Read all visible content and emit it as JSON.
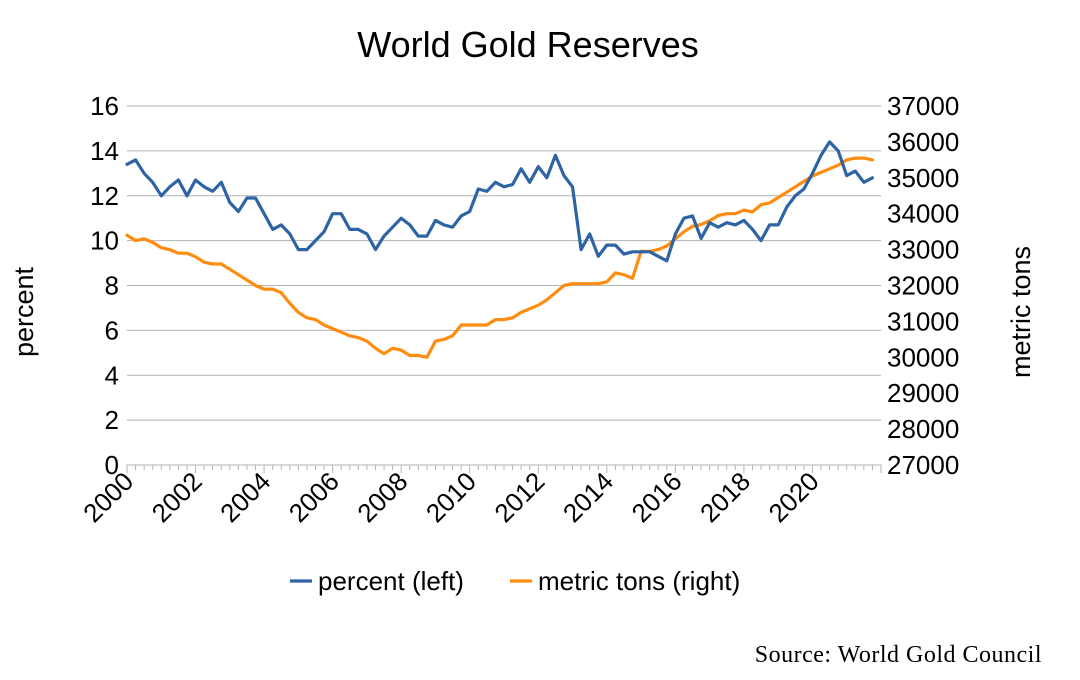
{
  "chart_data": {
    "type": "line",
    "title": "World Gold Reserves",
    "ylabel_left": "percent",
    "ylabel_right": "metric tons",
    "xlim": [
      2000,
      2022
    ],
    "ylim_left": [
      0,
      16
    ],
    "ylim_right": [
      27000,
      37000
    ],
    "left_ticks": [
      0,
      2,
      4,
      6,
      8,
      10,
      12,
      14,
      16
    ],
    "left_tick_labels": [
      "0",
      "2",
      "4",
      "6",
      "8",
      "10",
      "12",
      "14",
      "16"
    ],
    "right_ticks": [
      27000,
      28000,
      29000,
      30000,
      31000,
      32000,
      33000,
      34000,
      35000,
      36000,
      37000
    ],
    "right_tick_labels": [
      "27000",
      "28000",
      "29000",
      "30000",
      "31000",
      "32000",
      "33000",
      "34000",
      "35000",
      "36000",
      "37000"
    ],
    "x_ticks": [
      2000,
      2002,
      2004,
      2006,
      2008,
      2010,
      2012,
      2014,
      2016,
      2018,
      2020
    ],
    "x_tick_labels": [
      "2000",
      "2002",
      "2004",
      "2006",
      "2008",
      "2010",
      "2012",
      "2014",
      "2016",
      "2018",
      "2020"
    ],
    "grid": true,
    "legend_position": "bottom",
    "series": [
      {
        "name": "percent (left)",
        "axis": "left",
        "color": "#2e64a4",
        "x": [
          2000,
          2000.25,
          2000.5,
          2000.75,
          2001,
          2001.25,
          2001.5,
          2001.75,
          2002,
          2002.25,
          2002.5,
          2002.75,
          2003,
          2003.25,
          2003.5,
          2003.75,
          2004,
          2004.25,
          2004.5,
          2004.75,
          2005,
          2005.25,
          2005.5,
          2005.75,
          2006,
          2006.25,
          2006.5,
          2006.75,
          2007,
          2007.25,
          2007.5,
          2007.75,
          2008,
          2008.25,
          2008.5,
          2008.75,
          2009,
          2009.25,
          2009.5,
          2009.75,
          2010,
          2010.25,
          2010.5,
          2010.75,
          2011,
          2011.25,
          2011.5,
          2011.75,
          2012,
          2012.25,
          2012.5,
          2012.75,
          2013,
          2013.25,
          2013.5,
          2013.75,
          2014,
          2014.25,
          2014.5,
          2014.75,
          2015,
          2015.25,
          2015.5,
          2015.75,
          2016,
          2016.25,
          2016.5,
          2016.75,
          2017,
          2017.25,
          2017.5,
          2017.75,
          2018,
          2018.25,
          2018.5,
          2018.75,
          2019,
          2019.25,
          2019.5,
          2019.75,
          2020,
          2020.25,
          2020.5,
          2020.75,
          2021,
          2021.25,
          2021.5,
          2021.75
        ],
        "values": [
          13.4,
          13.6,
          13.0,
          12.6,
          12.0,
          12.4,
          12.7,
          12.0,
          12.7,
          12.4,
          12.2,
          12.6,
          11.7,
          11.3,
          11.9,
          11.9,
          11.2,
          10.5,
          10.7,
          10.3,
          9.6,
          9.6,
          10.0,
          10.4,
          11.2,
          11.2,
          10.5,
          10.5,
          10.3,
          9.6,
          10.2,
          10.6,
          11.0,
          10.7,
          10.2,
          10.2,
          10.9,
          10.7,
          10.6,
          11.1,
          11.3,
          12.3,
          12.2,
          12.6,
          12.4,
          12.5,
          13.2,
          12.6,
          13.3,
          12.8,
          13.8,
          12.9,
          12.4,
          9.6,
          10.3,
          9.3,
          9.8,
          9.8,
          9.4,
          9.5,
          9.5,
          9.5,
          9.3,
          9.1,
          10.3,
          11.0,
          11.1,
          10.1,
          10.8,
          10.6,
          10.8,
          10.7,
          10.9,
          10.5,
          10.0,
          10.7,
          10.7,
          11.5,
          12.0,
          12.3,
          13.0,
          13.8,
          14.4,
          14.0,
          12.9,
          13.1,
          12.6,
          12.8
        ]
      },
      {
        "name": "metric tons (right)",
        "axis": "right",
        "color": "#ff8c0e",
        "x": [
          2000,
          2000.25,
          2000.5,
          2000.75,
          2001,
          2001.25,
          2001.5,
          2001.75,
          2002,
          2002.25,
          2002.5,
          2002.75,
          2003,
          2003.25,
          2003.5,
          2003.75,
          2004,
          2004.25,
          2004.5,
          2004.75,
          2005,
          2005.25,
          2005.5,
          2005.75,
          2006,
          2006.25,
          2006.5,
          2006.75,
          2007,
          2007.25,
          2007.5,
          2007.75,
          2008,
          2008.25,
          2008.5,
          2008.75,
          2009,
          2009.25,
          2009.5,
          2009.75,
          2010,
          2010.25,
          2010.5,
          2010.75,
          2011,
          2011.25,
          2011.5,
          2011.75,
          2012,
          2012.25,
          2012.5,
          2012.75,
          2013,
          2013.25,
          2013.5,
          2013.75,
          2014,
          2014.25,
          2014.5,
          2014.75,
          2015,
          2015.25,
          2015.5,
          2015.75,
          2016,
          2016.25,
          2016.5,
          2016.75,
          2017,
          2017.25,
          2017.5,
          2017.75,
          2018,
          2018.25,
          2018.5,
          2018.75,
          2019,
          2019.25,
          2019.5,
          2019.75,
          2020,
          2020.25,
          2020.5,
          2020.75,
          2021,
          2021.25,
          2021.5,
          2021.75
        ],
        "values": [
          33400,
          33250,
          33300,
          33200,
          33050,
          33000,
          32900,
          32900,
          32800,
          32650,
          32600,
          32600,
          32450,
          32300,
          32150,
          32000,
          31900,
          31900,
          31800,
          31500,
          31250,
          31100,
          31050,
          30900,
          30800,
          30700,
          30600,
          30550,
          30450,
          30250,
          30100,
          30250,
          30200,
          30050,
          30050,
          30000,
          30450,
          30500,
          30600,
          30900,
          30900,
          30900,
          30900,
          31050,
          31050,
          31100,
          31250,
          31350,
          31450,
          31600,
          31800,
          32000,
          32050,
          32050,
          32050,
          32050,
          32100,
          32350,
          32300,
          32200,
          32950,
          32950,
          33000,
          33100,
          33300,
          33500,
          33650,
          33700,
          33800,
          33950,
          34000,
          34000,
          34100,
          34050,
          34250,
          34300,
          34450,
          34600,
          34750,
          34900,
          35050,
          35150,
          35250,
          35350,
          35500,
          35550,
          35550,
          35500
        ]
      }
    ]
  },
  "source_note": "Source:  World Gold Council"
}
